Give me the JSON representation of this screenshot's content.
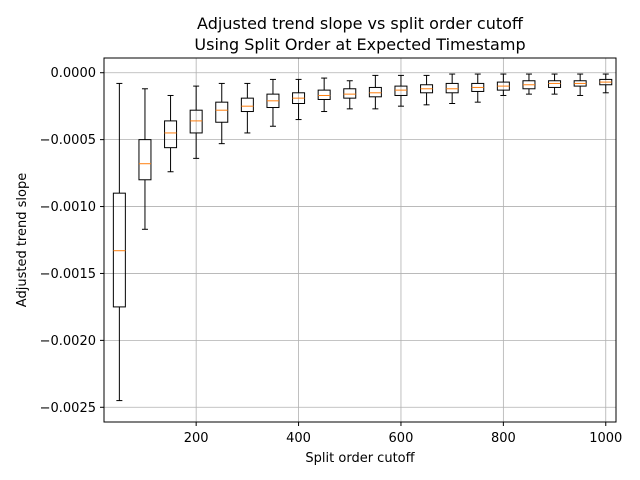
{
  "chart_data": {
    "type": "box",
    "title": "Adjusted trend slope vs split order cutoff",
    "subtitle": "Using Split Order at Expected Timestamp",
    "xlabel": "Split order cutoff",
    "ylabel": "Adjusted trend slope",
    "xlim": [
      20,
      1020
    ],
    "ylim": [
      -0.00261,
      0.00011
    ],
    "xticks": [
      200,
      400,
      600,
      800,
      1000
    ],
    "xtick_labels": [
      "200",
      "400",
      "600",
      "800",
      "1000"
    ],
    "yticks": [
      0.0,
      -0.0005,
      -0.001,
      -0.0015,
      -0.002,
      -0.0025
    ],
    "ytick_labels": [
      "0.0000",
      "−0.0005",
      "−0.0010",
      "−0.0015",
      "−0.0020",
      "−0.0025"
    ],
    "grid": true,
    "box_color": "#000000",
    "median_color": "#ff7f0e",
    "boxes": [
      {
        "x": 50,
        "whislo": -0.00245,
        "q1": -0.00175,
        "med": -0.00133,
        "q3": -0.0009,
        "whishi": -8e-05
      },
      {
        "x": 100,
        "whislo": -0.00117,
        "q1": -0.0008,
        "med": -0.00068,
        "q3": -0.0005,
        "whishi": -0.00012
      },
      {
        "x": 150,
        "whislo": -0.00074,
        "q1": -0.00056,
        "med": -0.00045,
        "q3": -0.00036,
        "whishi": -0.00017
      },
      {
        "x": 200,
        "whislo": -0.00064,
        "q1": -0.00045,
        "med": -0.00036,
        "q3": -0.00028,
        "whishi": -0.0001
      },
      {
        "x": 250,
        "whislo": -0.00053,
        "q1": -0.00037,
        "med": -0.00028,
        "q3": -0.00022,
        "whishi": -8e-05
      },
      {
        "x": 300,
        "whislo": -0.00045,
        "q1": -0.00029,
        "med": -0.00025,
        "q3": -0.00019,
        "whishi": -8e-05
      },
      {
        "x": 350,
        "whislo": -0.0004,
        "q1": -0.00026,
        "med": -0.00021,
        "q3": -0.00016,
        "whishi": -5e-05
      },
      {
        "x": 400,
        "whislo": -0.00035,
        "q1": -0.00023,
        "med": -0.00019,
        "q3": -0.00015,
        "whishi": -5e-05
      },
      {
        "x": 450,
        "whislo": -0.00029,
        "q1": -0.0002,
        "med": -0.00017,
        "q3": -0.00013,
        "whishi": -4e-05
      },
      {
        "x": 500,
        "whislo": -0.00027,
        "q1": -0.00019,
        "med": -0.00016,
        "q3": -0.00012,
        "whishi": -6e-05
      },
      {
        "x": 550,
        "whislo": -0.00027,
        "q1": -0.00018,
        "med": -0.00015,
        "q3": -0.00011,
        "whishi": -2e-05
      },
      {
        "x": 600,
        "whislo": -0.00025,
        "q1": -0.00017,
        "med": -0.00013,
        "q3": -0.0001,
        "whishi": -2e-05
      },
      {
        "x": 650,
        "whislo": -0.00024,
        "q1": -0.00015,
        "med": -0.00012,
        "q3": -9e-05,
        "whishi": -2e-05
      },
      {
        "x": 700,
        "whislo": -0.00023,
        "q1": -0.00015,
        "med": -0.00012,
        "q3": -8e-05,
        "whishi": -1e-05
      },
      {
        "x": 750,
        "whislo": -0.00022,
        "q1": -0.00014,
        "med": -0.00011,
        "q3": -8e-05,
        "whishi": -1e-05
      },
      {
        "x": 800,
        "whislo": -0.00017,
        "q1": -0.00013,
        "med": -0.0001,
        "q3": -7e-05,
        "whishi": -1e-05
      },
      {
        "x": 850,
        "whislo": -0.00016,
        "q1": -0.00012,
        "med": -9e-05,
        "q3": -6e-05,
        "whishi": -1e-05
      },
      {
        "x": 900,
        "whislo": -0.00016,
        "q1": -0.00011,
        "med": -8e-05,
        "q3": -6e-05,
        "whishi": -1e-05
      },
      {
        "x": 950,
        "whislo": -0.00017,
        "q1": -0.0001,
        "med": -8e-05,
        "q3": -6e-05,
        "whishi": -1e-05
      },
      {
        "x": 1000,
        "whislo": -0.00015,
        "q1": -9e-05,
        "med": -7e-05,
        "q3": -5e-05,
        "whishi": -1e-05
      }
    ]
  }
}
